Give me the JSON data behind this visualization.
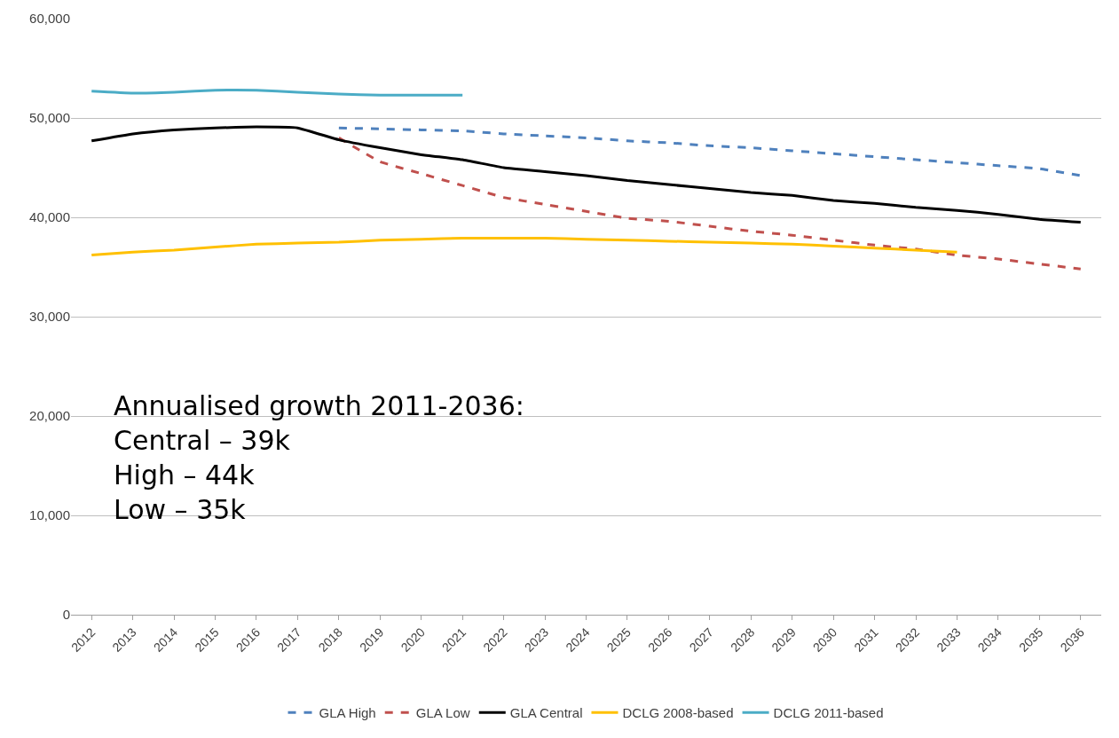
{
  "chart_data": {
    "type": "line",
    "categories": [
      "2012",
      "2013",
      "2014",
      "2015",
      "2016",
      "2017",
      "2018",
      "2019",
      "2020",
      "2021",
      "2022",
      "2023",
      "2024",
      "2025",
      "2026",
      "2027",
      "2028",
      "2029",
      "2030",
      "2031",
      "2032",
      "2033",
      "2034",
      "2035",
      "2036"
    ],
    "series": [
      {
        "name": "GLA High",
        "color": "#4f81bd",
        "line_style": "dashed",
        "values": [
          null,
          null,
          null,
          null,
          null,
          null,
          49000,
          48900,
          48800,
          48700,
          48400,
          48200,
          48000,
          47700,
          47500,
          47200,
          47000,
          46700,
          46400,
          46100,
          45800,
          45500,
          45200,
          44900,
          44200
        ]
      },
      {
        "name": "GLA Low",
        "color": "#c0504d",
        "line_style": "dashed",
        "values": [
          null,
          null,
          null,
          null,
          null,
          null,
          48000,
          45600,
          44400,
          43200,
          42000,
          41300,
          40600,
          39900,
          39600,
          39100,
          38600,
          38200,
          37700,
          37200,
          36800,
          36200,
          35800,
          35300,
          34800
        ]
      },
      {
        "name": "GLA Central",
        "color": "#000000",
        "line_style": "solid",
        "values": [
          47700,
          48400,
          48800,
          49000,
          49100,
          49000,
          47800,
          47000,
          46300,
          45800,
          45000,
          44600,
          44200,
          43700,
          43300,
          42900,
          42500,
          42200,
          41700,
          41400,
          41000,
          40700,
          40300,
          39800,
          39500
        ]
      },
      {
        "name": "DCLG 2008-based",
        "color": "#ffc000",
        "line_style": "solid",
        "values": [
          36200,
          36500,
          36700,
          37000,
          37300,
          37400,
          37500,
          37700,
          37800,
          37900,
          37900,
          37900,
          37800,
          37700,
          37600,
          37500,
          37400,
          37300,
          37100,
          36900,
          36700,
          36500,
          null,
          null,
          null
        ]
      },
      {
        "name": "DCLG 2011-based",
        "color": "#4bacc6",
        "line_style": "solid",
        "values": [
          52700,
          52500,
          52600,
          52800,
          52800,
          52600,
          52400,
          52300,
          52300,
          52300,
          null,
          null,
          null,
          null,
          null,
          null,
          null,
          null,
          null,
          null,
          null,
          null,
          null,
          null,
          null
        ]
      }
    ],
    "ylim": [
      0,
      60000
    ],
    "yticks": [
      {
        "value": 0,
        "label": "0"
      },
      {
        "value": 10000,
        "label": "10,000"
      },
      {
        "value": 20000,
        "label": "20,000"
      },
      {
        "value": 30000,
        "label": "30,000"
      },
      {
        "value": 40000,
        "label": "40,000"
      },
      {
        "value": 50000,
        "label": "50,000"
      },
      {
        "value": 60000,
        "label": "60,000"
      }
    ],
    "grid": "y",
    "legend": "bottom",
    "marker": "none",
    "annotations": [
      "Annualised growth 2011-2036:\nCentral – 39k\nHigh – 44k\nLow – 35k"
    ]
  }
}
